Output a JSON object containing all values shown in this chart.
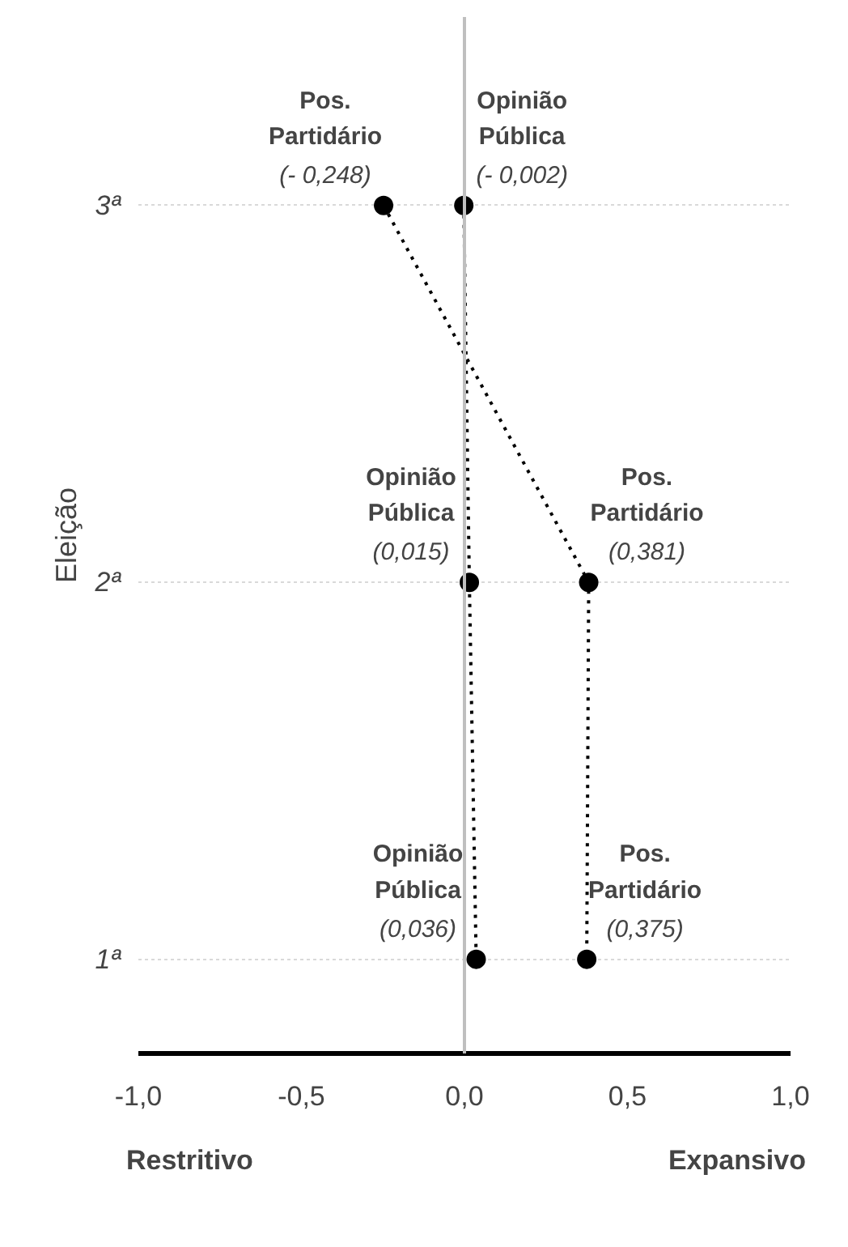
{
  "chart_data": {
    "type": "line",
    "orientation": "horizontal",
    "ylabel": "Eleição",
    "categories": [
      "3ª",
      "2ª",
      "1ª"
    ],
    "xlim": [
      -1.0,
      1.0
    ],
    "xticks": [
      {
        "value": -1.0,
        "label": "-1,0"
      },
      {
        "value": -0.5,
        "label": "-0,5"
      },
      {
        "value": 0.0,
        "label": "0,0"
      },
      {
        "value": 0.5,
        "label": "0,5"
      },
      {
        "value": 1.0,
        "label": "1,0"
      }
    ],
    "grid": "y",
    "marker": "circle",
    "line_style": "dotted",
    "series": [
      {
        "name": "Opinião Pública",
        "color": "#000000",
        "values": [
          -0.002,
          0.015,
          0.036
        ],
        "value_labels": [
          "(- 0,002)",
          "(0,015)",
          "(0,036)"
        ]
      },
      {
        "name": "Pos. Partidário",
        "color": "#000000",
        "values": [
          -0.248,
          0.381,
          0.375
        ],
        "value_labels": [
          "(- 0,248)",
          "(0,381)",
          "(0,375)"
        ]
      }
    ],
    "ref_lines": [
      {
        "axis": "x",
        "value": 0,
        "color": "#bfbfbf",
        "line_style": "solid"
      }
    ],
    "annotations": [
      "Restritivo",
      "Expansivo"
    ]
  }
}
